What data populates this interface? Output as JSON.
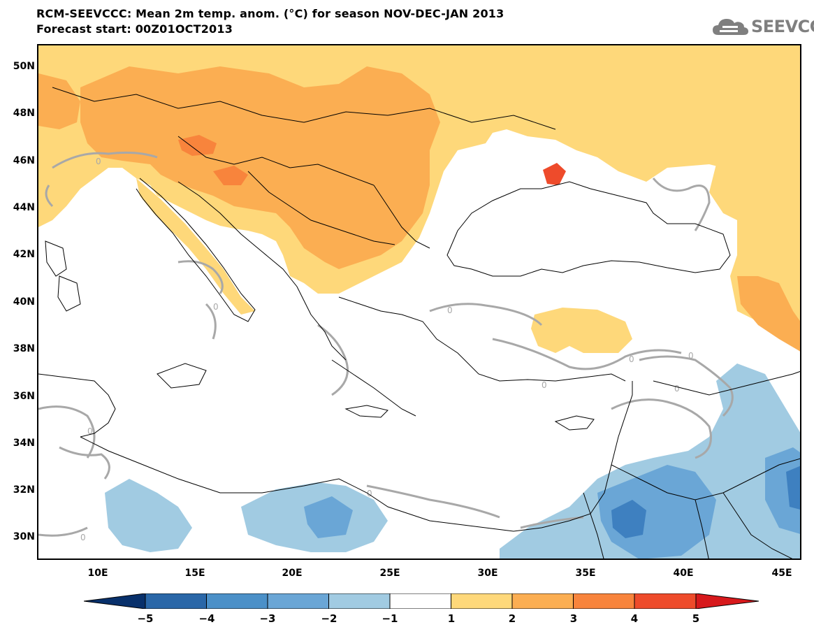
{
  "header": {
    "title": "RCM-SEEVCCC: Mean 2m temp. anom. (°C) for season NOV-DEC-JAN 2013",
    "subtitle": "Forecast start: 00Z01OCT2013"
  },
  "logo": {
    "text": "SEEVCCC",
    "icon": "cloud-icon"
  },
  "map": {
    "lat_labels": [
      "50N",
      "48N",
      "46N",
      "44N",
      "42N",
      "40N",
      "38N",
      "36N",
      "34N",
      "32N",
      "30N"
    ],
    "lon_labels": [
      "10E",
      "15E",
      "20E",
      "25E",
      "30E",
      "35E",
      "40E",
      "45E"
    ],
    "contour_label": "0",
    "colors": {
      "sea": "#ffffff",
      "anom_1_2": "#fed87a",
      "anom_2_3": "#fbae52",
      "anom_3_4": "#f8843c",
      "anom_4_5": "#ee4b2b",
      "anom_m1_m2": "#a1cbe2",
      "anom_m2_m3": "#6aa6d6",
      "anom_m3_m4": "#3e80c0",
      "contour_zero": "#a8a8a8",
      "borders": "#000000"
    }
  },
  "colorbar": {
    "labels": [
      "−5",
      "−4",
      "−3",
      "−2",
      "−1",
      "1",
      "2",
      "3",
      "4",
      "5"
    ],
    "colors": [
      "#08306b",
      "#2a67a8",
      "#4b90c8",
      "#6aa6d6",
      "#a1cbe2",
      "#ffffff",
      "#fed87a",
      "#fbae52",
      "#f8843c",
      "#ee4b2b",
      "#d7191c"
    ]
  }
}
